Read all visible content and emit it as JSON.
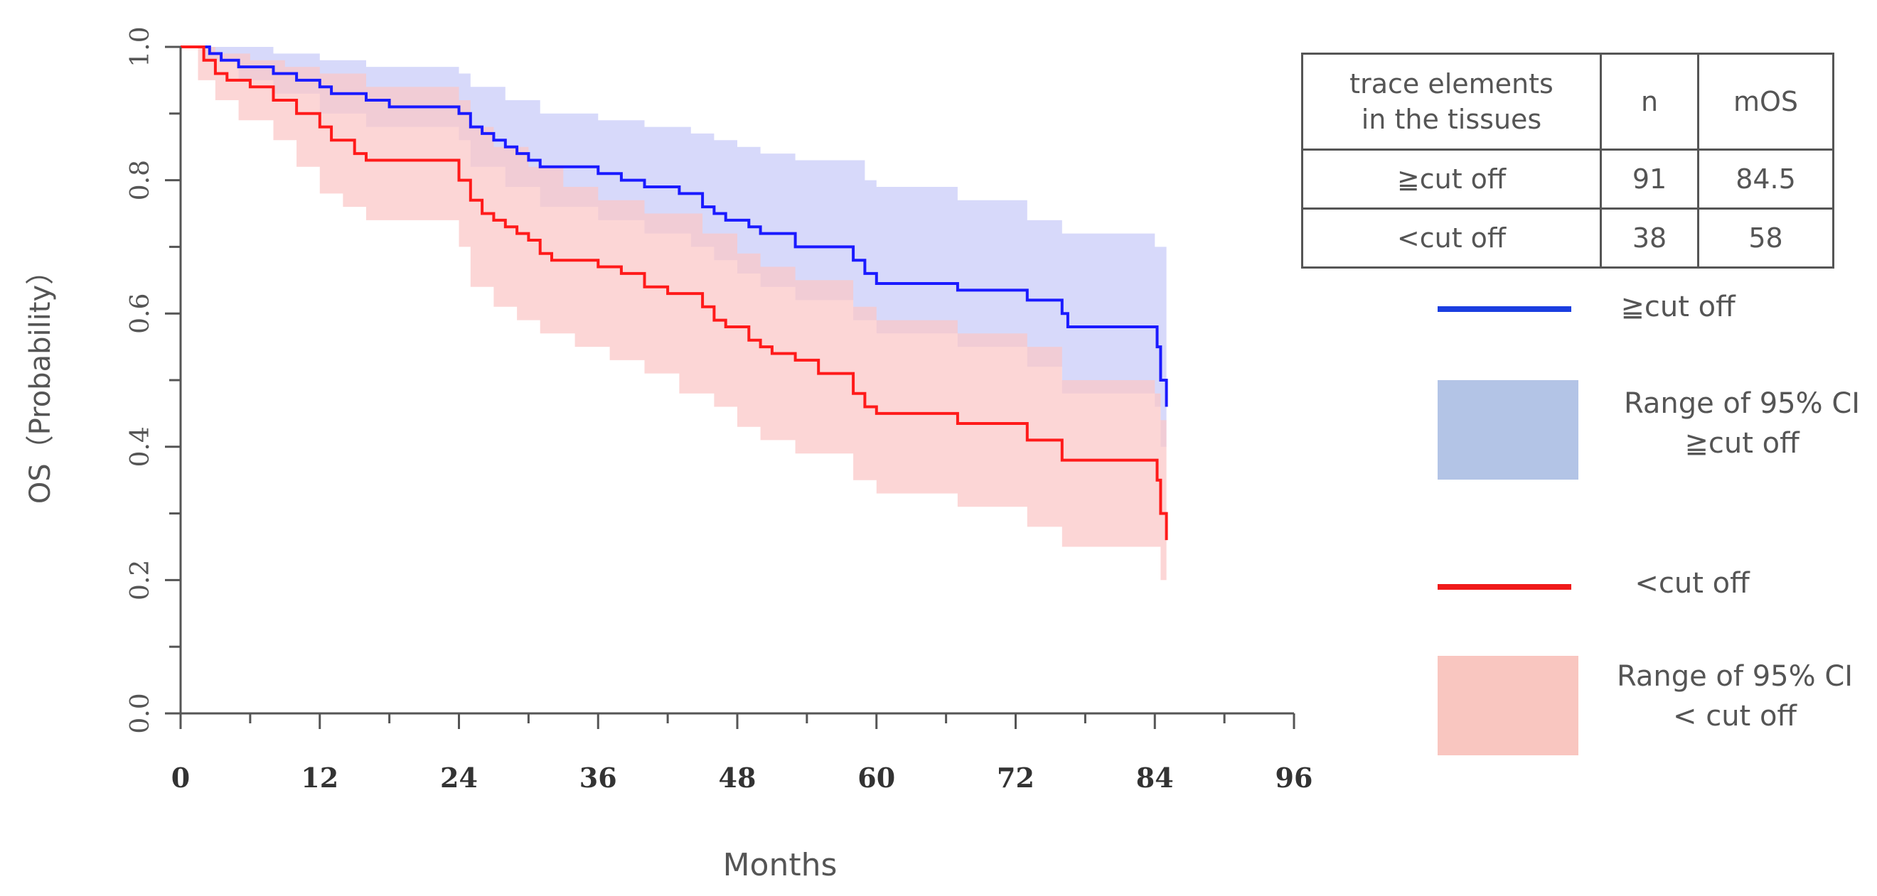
{
  "chart_data": {
    "type": "line",
    "subtype": "kaplan-meier survival curves with 95% CI bands",
    "xlabel": "Months",
    "ylabel": "OS（Probability）",
    "xlim": [
      0,
      96
    ],
    "ylim": [
      0,
      1
    ],
    "xticks": [
      "0",
      "12",
      "24",
      "36",
      "48",
      "60",
      "72",
      "84",
      "96"
    ],
    "yticks": [
      "0.0",
      "0.2",
      "0.4",
      "0.6",
      "0.8",
      "1.0"
    ],
    "series": [
      {
        "name": "≧cut off",
        "color": "#1a1aff",
        "ci_color": "#c8caf8",
        "steps": [
          [
            0,
            1.0
          ],
          [
            2.5,
            0.99
          ],
          [
            3.5,
            0.98
          ],
          [
            5,
            0.97
          ],
          [
            8,
            0.96
          ],
          [
            10,
            0.95
          ],
          [
            12,
            0.94
          ],
          [
            13,
            0.93
          ],
          [
            16,
            0.92
          ],
          [
            18,
            0.91
          ],
          [
            24,
            0.9
          ],
          [
            25,
            0.88
          ],
          [
            26,
            0.87
          ],
          [
            27,
            0.86
          ],
          [
            28,
            0.85
          ],
          [
            29,
            0.84
          ],
          [
            30,
            0.83
          ],
          [
            31,
            0.82
          ],
          [
            36,
            0.81
          ],
          [
            38,
            0.8
          ],
          [
            40,
            0.79
          ],
          [
            43,
            0.78
          ],
          [
            45,
            0.76
          ],
          [
            46,
            0.75
          ],
          [
            47,
            0.74
          ],
          [
            49,
            0.73
          ],
          [
            50,
            0.72
          ],
          [
            53,
            0.7
          ],
          [
            58,
            0.68
          ],
          [
            59,
            0.66
          ],
          [
            60,
            0.645
          ],
          [
            67,
            0.635
          ],
          [
            73,
            0.62
          ],
          [
            76,
            0.6
          ],
          [
            76.5,
            0.58
          ],
          [
            84,
            0.58
          ],
          [
            84.2,
            0.55
          ],
          [
            84.5,
            0.5
          ],
          [
            85,
            0.46
          ]
        ],
        "ci_upper": [
          [
            0,
            1.0
          ],
          [
            3,
            1.0
          ],
          [
            8,
            0.99
          ],
          [
            12,
            0.98
          ],
          [
            16,
            0.97
          ],
          [
            24,
            0.96
          ],
          [
            25,
            0.94
          ],
          [
            28,
            0.92
          ],
          [
            31,
            0.9
          ],
          [
            36,
            0.89
          ],
          [
            40,
            0.88
          ],
          [
            44,
            0.87
          ],
          [
            46,
            0.86
          ],
          [
            48,
            0.85
          ],
          [
            50,
            0.84
          ],
          [
            53,
            0.83
          ],
          [
            59,
            0.8
          ],
          [
            60,
            0.79
          ],
          [
            67,
            0.77
          ],
          [
            73,
            0.74
          ],
          [
            76,
            0.72
          ],
          [
            84,
            0.7
          ],
          [
            85,
            0.67
          ]
        ],
        "ci_lower": [
          [
            0,
            1.0
          ],
          [
            2,
            0.98
          ],
          [
            5,
            0.95
          ],
          [
            8,
            0.93
          ],
          [
            12,
            0.9
          ],
          [
            16,
            0.88
          ],
          [
            24,
            0.86
          ],
          [
            25,
            0.82
          ],
          [
            28,
            0.79
          ],
          [
            31,
            0.76
          ],
          [
            36,
            0.74
          ],
          [
            40,
            0.72
          ],
          [
            44,
            0.7
          ],
          [
            46,
            0.68
          ],
          [
            48,
            0.66
          ],
          [
            50,
            0.64
          ],
          [
            53,
            0.62
          ],
          [
            58,
            0.59
          ],
          [
            60,
            0.57
          ],
          [
            67,
            0.55
          ],
          [
            73,
            0.52
          ],
          [
            76,
            0.48
          ],
          [
            84,
            0.46
          ],
          [
            84.5,
            0.4
          ],
          [
            85,
            0.36
          ]
        ]
      },
      {
        "name": "<cut off",
        "color": "#ff1a1a",
        "ci_color": "#fbc6c6",
        "steps": [
          [
            0,
            1.0
          ],
          [
            2,
            0.98
          ],
          [
            3,
            0.96
          ],
          [
            4,
            0.95
          ],
          [
            6,
            0.94
          ],
          [
            8,
            0.92
          ],
          [
            10,
            0.9
          ],
          [
            12,
            0.88
          ],
          [
            13,
            0.86
          ],
          [
            15,
            0.84
          ],
          [
            16,
            0.83
          ],
          [
            24,
            0.8
          ],
          [
            25,
            0.77
          ],
          [
            26,
            0.75
          ],
          [
            27,
            0.74
          ],
          [
            28,
            0.73
          ],
          [
            29,
            0.72
          ],
          [
            30,
            0.71
          ],
          [
            31,
            0.69
          ],
          [
            32,
            0.68
          ],
          [
            36,
            0.67
          ],
          [
            38,
            0.66
          ],
          [
            40,
            0.64
          ],
          [
            42,
            0.63
          ],
          [
            45,
            0.61
          ],
          [
            46,
            0.59
          ],
          [
            47,
            0.58
          ],
          [
            49,
            0.56
          ],
          [
            50,
            0.55
          ],
          [
            51,
            0.54
          ],
          [
            53,
            0.53
          ],
          [
            55,
            0.51
          ],
          [
            58,
            0.48
          ],
          [
            59,
            0.46
          ],
          [
            60,
            0.45
          ],
          [
            67,
            0.435
          ],
          [
            73,
            0.41
          ],
          [
            76,
            0.38
          ],
          [
            84,
            0.38
          ],
          [
            84.2,
            0.35
          ],
          [
            84.5,
            0.3
          ],
          [
            85,
            0.26
          ]
        ],
        "ci_upper": [
          [
            0,
            1.0
          ],
          [
            3,
            0.99
          ],
          [
            6,
            0.98
          ],
          [
            9,
            0.97
          ],
          [
            12,
            0.96
          ],
          [
            16,
            0.94
          ],
          [
            24,
            0.92
          ],
          [
            25,
            0.88
          ],
          [
            27,
            0.85
          ],
          [
            30,
            0.82
          ],
          [
            33,
            0.79
          ],
          [
            36,
            0.77
          ],
          [
            40,
            0.75
          ],
          [
            45,
            0.72
          ],
          [
            48,
            0.69
          ],
          [
            50,
            0.67
          ],
          [
            53,
            0.65
          ],
          [
            58,
            0.61
          ],
          [
            60,
            0.59
          ],
          [
            67,
            0.57
          ],
          [
            73,
            0.55
          ],
          [
            76,
            0.5
          ],
          [
            84,
            0.48
          ],
          [
            84.5,
            0.44
          ],
          [
            85,
            0.38
          ]
        ],
        "ci_lower": [
          [
            0,
            1.0
          ],
          [
            1.5,
            0.95
          ],
          [
            3,
            0.92
          ],
          [
            5,
            0.89
          ],
          [
            8,
            0.86
          ],
          [
            10,
            0.82
          ],
          [
            12,
            0.78
          ],
          [
            14,
            0.76
          ],
          [
            16,
            0.74
          ],
          [
            24,
            0.7
          ],
          [
            25,
            0.64
          ],
          [
            27,
            0.61
          ],
          [
            29,
            0.59
          ],
          [
            31,
            0.57
          ],
          [
            34,
            0.55
          ],
          [
            37,
            0.53
          ],
          [
            40,
            0.51
          ],
          [
            43,
            0.48
          ],
          [
            46,
            0.46
          ],
          [
            48,
            0.43
          ],
          [
            50,
            0.41
          ],
          [
            53,
            0.39
          ],
          [
            58,
            0.35
          ],
          [
            60,
            0.33
          ],
          [
            67,
            0.31
          ],
          [
            73,
            0.28
          ],
          [
            76,
            0.25
          ],
          [
            84,
            0.25
          ],
          [
            84.5,
            0.2
          ],
          [
            85,
            0.17
          ]
        ]
      }
    ]
  },
  "table": {
    "headers": [
      "trace elements\nin the tissues",
      "n",
      "mOS"
    ],
    "rows": [
      [
        "≧cut off",
        "91",
        "84.5"
      ],
      [
        "<cut off",
        "38",
        "58"
      ]
    ]
  },
  "legend": {
    "high_line": "≧cut off",
    "high_ci_line1": "Range of 95% CI",
    "high_ci_line2": "≧cut off",
    "low_line": "<cut off",
    "low_ci_line1": "Range of 95% CI",
    "low_ci_line2": "< cut off",
    "colors": {
      "high_line": "#1a3ee0",
      "high_ci": "#b3c4e6",
      "low_line": "#f01a1a",
      "low_ci": "#f9c6c0"
    }
  }
}
